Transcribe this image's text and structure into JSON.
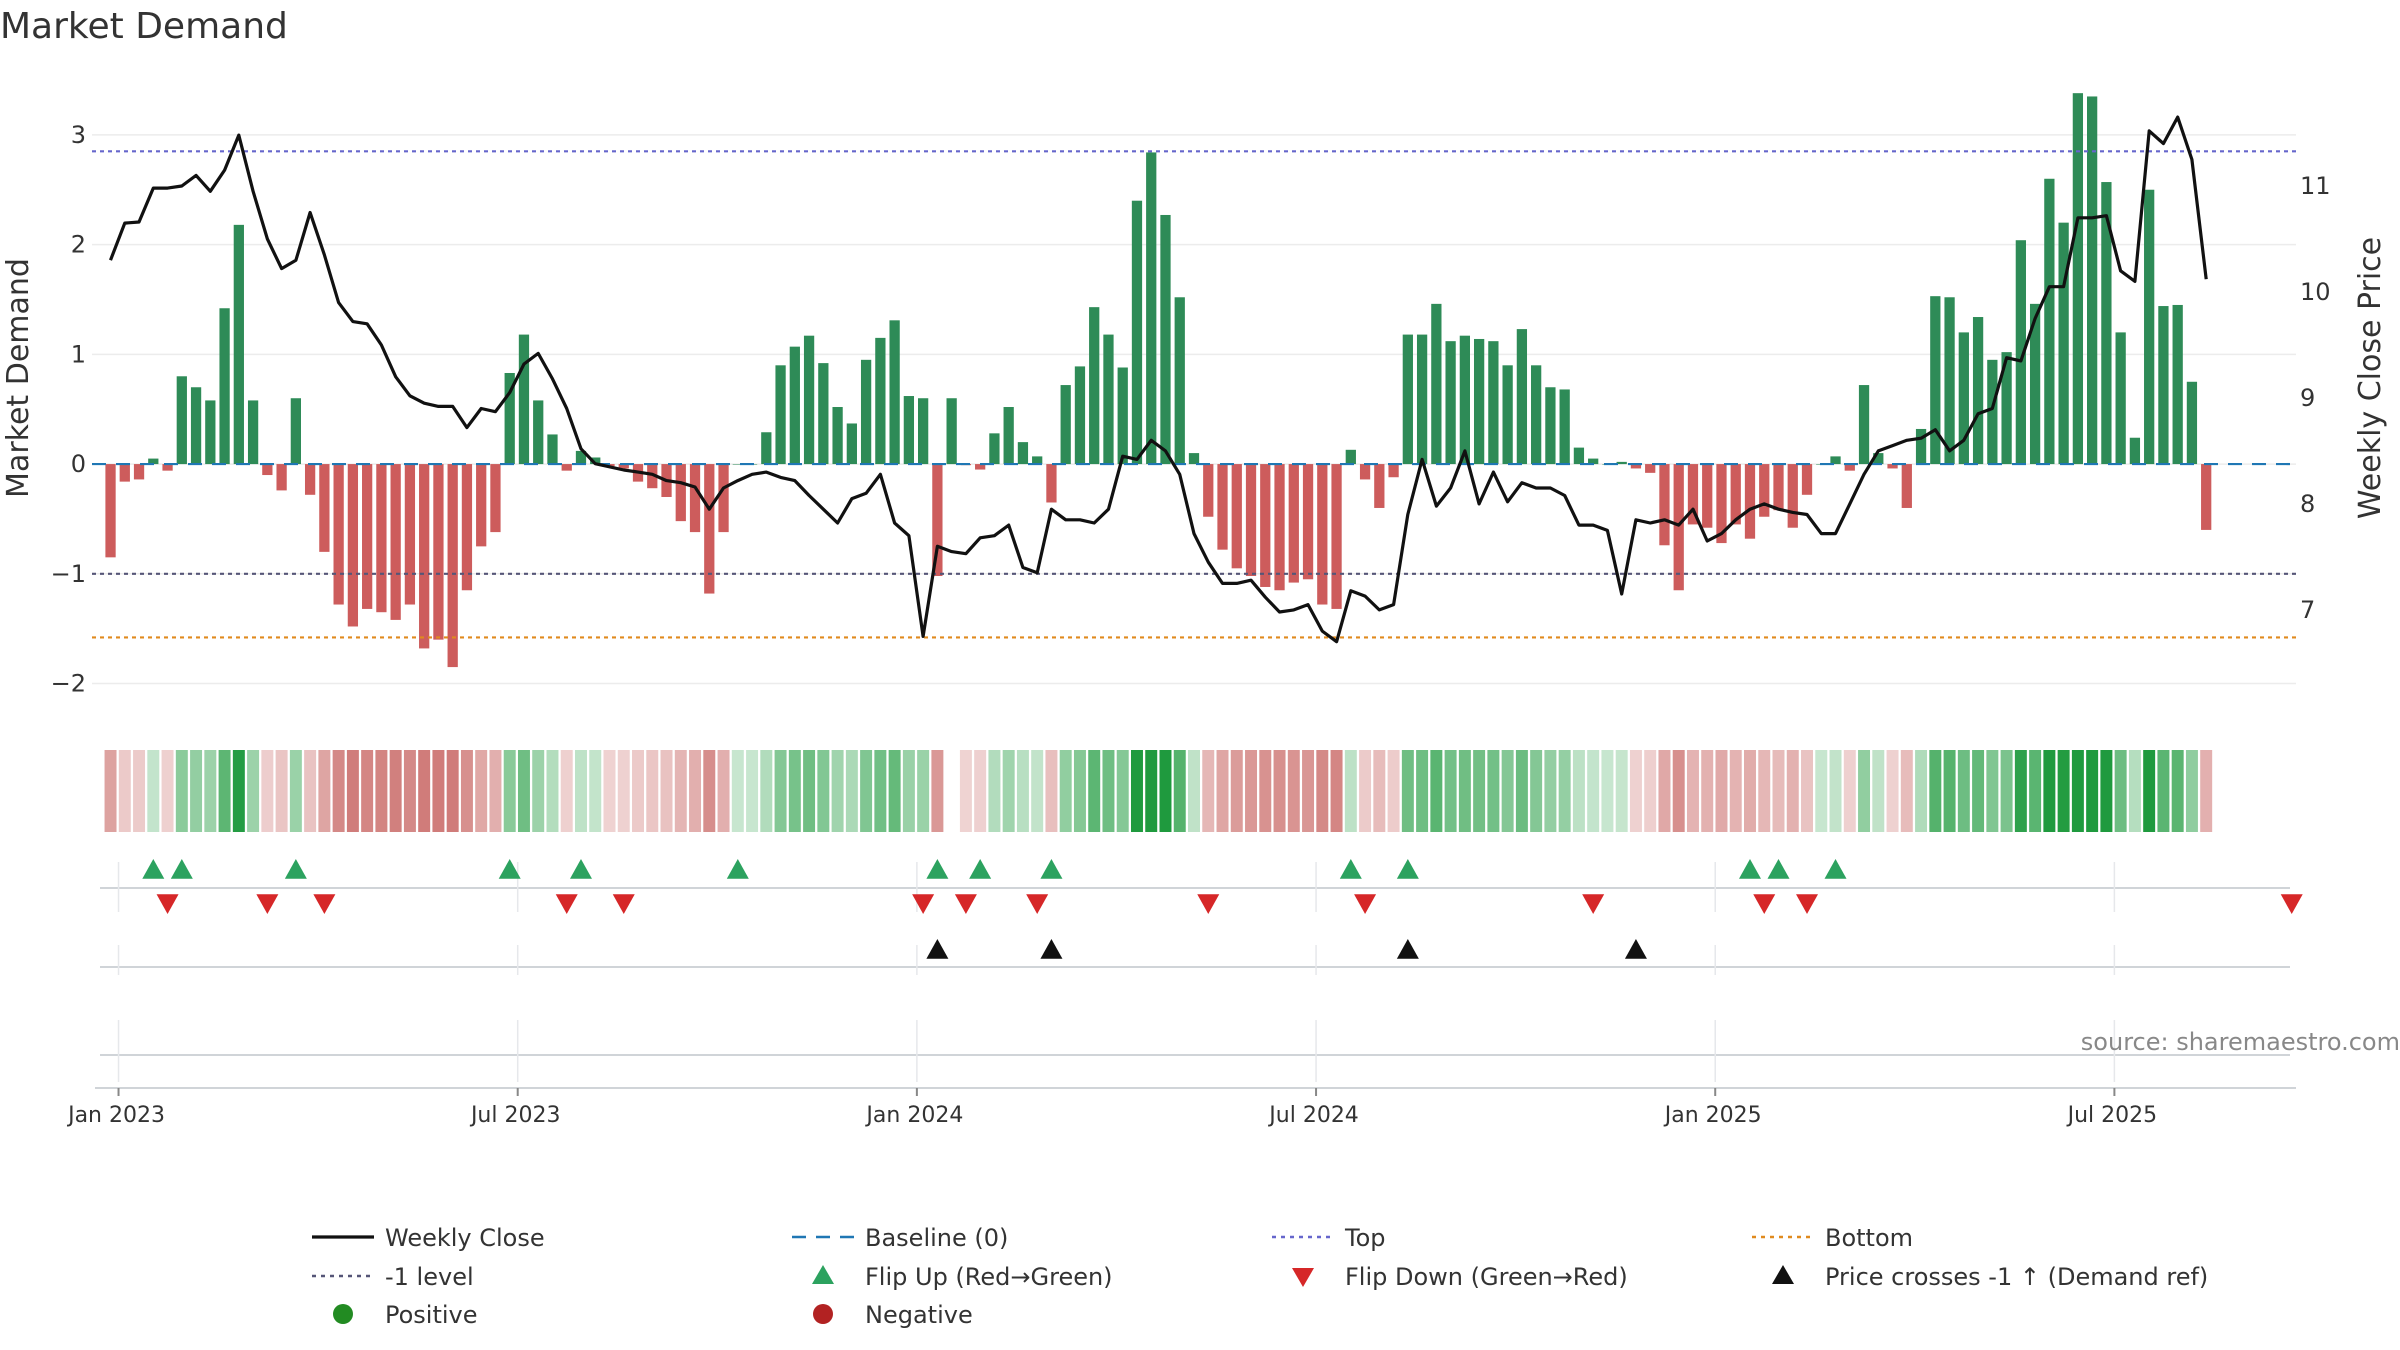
{
  "chart_data": {
    "type": "bar",
    "title": "Market Demand",
    "ylabel": "Market Demand",
    "ylabel_right": "Weekly Close Price",
    "ylim": [
      -2.15,
      3.5
    ],
    "ylim_right": [
      6.15,
      12.0
    ],
    "yticks": [
      -2,
      -1,
      0,
      1,
      2,
      3
    ],
    "ytick_labels": [
      "−2",
      "−1",
      "0",
      "1",
      "2",
      "3"
    ],
    "yticks_right": [
      7,
      8,
      9,
      10,
      11
    ],
    "ytick_labels_right": [
      "7",
      "8",
      "9",
      "10",
      "11"
    ],
    "x_range": [
      -1.3,
      153.3
    ],
    "xticks": [
      {
        "label": "Jan 2023",
        "index": 0
      },
      {
        "label": "Jul 2023",
        "index": 28
      },
      {
        "label": "Jan 2024",
        "index": 56
      },
      {
        "label": "Jul 2024",
        "index": 84
      },
      {
        "label": "Jan 2025",
        "index": 112
      },
      {
        "label": "Jul 2025",
        "index": 140
      }
    ],
    "reference_lines": {
      "top": 2.85,
      "bottom": -1.58,
      "minus_one": -1.0,
      "baseline": 0
    },
    "series": [
      {
        "name": "Market Demand",
        "kind": "bar",
        "values": [
          -0.85,
          -0.16,
          -0.14,
          0.05,
          -0.06,
          0.8,
          0.7,
          0.58,
          1.42,
          2.18,
          0.58,
          -0.1,
          -0.24,
          0.6,
          -0.28,
          -0.8,
          -1.28,
          -1.48,
          -1.32,
          -1.35,
          -1.42,
          -1.28,
          -1.68,
          -1.6,
          -1.85,
          -1.15,
          -0.75,
          -0.62,
          0.83,
          1.18,
          0.58,
          0.27,
          -0.06,
          0.12,
          0.06,
          -0.02,
          -0.04,
          -0.16,
          -0.22,
          -0.3,
          -0.52,
          -0.62,
          -1.18,
          -0.62,
          0.0,
          0.0,
          0.29,
          0.9,
          1.07,
          1.17,
          0.92,
          0.52,
          0.37,
          0.95,
          1.15,
          1.31,
          0.62,
          0.6,
          -1.02,
          0.6,
          -0.01,
          -0.05,
          0.28,
          0.52,
          0.2,
          0.07,
          -0.35,
          0.72,
          0.89,
          1.43,
          1.18,
          0.88,
          2.4,
          2.84,
          2.27,
          1.52,
          0.1,
          -0.48,
          -0.78,
          -0.95,
          -1.02,
          -1.12,
          -1.15,
          -1.08,
          -1.05,
          -1.28,
          -1.32,
          0.13,
          -0.14,
          -0.4,
          -0.12,
          1.18,
          1.18,
          1.46,
          1.12,
          1.17,
          1.14,
          1.12,
          0.9,
          1.23,
          0.9,
          0.7,
          0.68,
          0.15,
          0.05,
          0.0,
          0.02,
          -0.04,
          -0.08,
          -0.74,
          -1.15,
          -0.55,
          -0.58,
          -0.72,
          -0.55,
          -0.68,
          -0.48,
          -0.42,
          -0.58,
          -0.28,
          0.0,
          0.07,
          -0.06,
          0.72,
          0.1,
          -0.04,
          -0.4,
          0.32,
          1.53,
          1.52,
          1.2,
          1.34,
          0.95,
          1.02,
          2.04,
          1.46,
          2.6,
          2.2,
          3.38,
          3.35,
          2.57,
          1.2,
          0.24,
          2.5,
          1.44,
          1.45,
          0.75,
          -0.6
        ]
      },
      {
        "name": "Weekly Close",
        "kind": "line",
        "axis": "right",
        "values": [
          10.3,
          10.65,
          10.66,
          10.98,
          10.98,
          11.0,
          11.1,
          10.95,
          11.15,
          11.48,
          10.95,
          10.5,
          10.22,
          10.3,
          10.75,
          10.35,
          9.9,
          9.72,
          9.7,
          9.5,
          9.2,
          9.02,
          8.95,
          8.92,
          8.92,
          8.72,
          8.9,
          8.87,
          9.05,
          9.32,
          9.42,
          9.18,
          8.9,
          8.52,
          8.38,
          8.35,
          8.32,
          8.3,
          8.28,
          8.22,
          8.2,
          8.16,
          7.95,
          8.15,
          8.22,
          8.28,
          8.3,
          8.25,
          8.22,
          8.08,
          7.95,
          7.82,
          8.05,
          8.1,
          8.28,
          7.82,
          7.7,
          6.75,
          7.6,
          7.55,
          7.53,
          7.68,
          7.7,
          7.8,
          7.4,
          7.35,
          7.95,
          7.85,
          7.85,
          7.82,
          7.95,
          8.45,
          8.42,
          8.6,
          8.5,
          8.28,
          7.72,
          7.45,
          7.25,
          7.25,
          7.28,
          7.12,
          6.98,
          7.0,
          7.05,
          6.8,
          6.7,
          7.18,
          7.13,
          7.0,
          7.05,
          7.9,
          8.42,
          7.98,
          8.15,
          8.5,
          8.0,
          8.3,
          8.02,
          8.2,
          8.15,
          8.15,
          8.08,
          7.8,
          7.8,
          7.75,
          7.15,
          7.85,
          7.82,
          7.85,
          7.8,
          7.95,
          7.65,
          7.72,
          7.85,
          7.95,
          8.0,
          7.95,
          7.92,
          7.9,
          7.72,
          7.72,
          8.0,
          8.28,
          8.5,
          8.55,
          8.6,
          8.62,
          8.7,
          8.5,
          8.6,
          8.85,
          8.9,
          9.38,
          9.35,
          9.75,
          10.05,
          10.05,
          10.7,
          10.7,
          10.72,
          10.2,
          10.1,
          11.52,
          11.4,
          11.65,
          11.25,
          10.12
        ]
      },
      {
        "name": "Flip Up (Red→Green)",
        "kind": "marker",
        "indices": [
          3,
          5,
          13,
          28,
          33,
          44,
          58,
          61,
          66,
          87,
          91,
          115,
          117,
          121
        ]
      },
      {
        "name": "Flip Down (Green→Red)",
        "kind": "marker",
        "indices": [
          4,
          11,
          15,
          32,
          36,
          57,
          60,
          65,
          77,
          88,
          104,
          116,
          119,
          153
        ]
      },
      {
        "name": "Price crosses -1 ↑ (Demand ref)",
        "kind": "marker",
        "indices": [
          58,
          66,
          91,
          107
        ]
      }
    ],
    "heat_strip_gaps": [
      59
    ],
    "legend": [
      {
        "label": "Weekly Close",
        "style": "solid",
        "color": "#111111"
      },
      {
        "label": "Baseline (0)",
        "style": "dashed",
        "color": "#1f77b4"
      },
      {
        "label": "Top",
        "style": "dotted",
        "color": "#6666cc"
      },
      {
        "label": "Bottom",
        "style": "dotted",
        "color": "#e08a1e"
      },
      {
        "label": "-1 level",
        "style": "dotted",
        "color": "#555577"
      },
      {
        "label": "Flip Up (Red→Green)",
        "style": "triangle-up",
        "color": "#2ca25f"
      },
      {
        "label": "Flip Down (Green→Red)",
        "style": "triangle-down",
        "color": "#d62728"
      },
      {
        "label": "Price crosses -1 ↑ (Demand ref)",
        "style": "triangle-up",
        "color": "#111111"
      },
      {
        "label": "Positive",
        "style": "circle",
        "color": "#228b22"
      },
      {
        "label": "Negative",
        "style": "circle",
        "color": "#b22222"
      }
    ],
    "legend_placement": "bottom",
    "source_note": "source: sharemaestro.com"
  },
  "colors": {
    "positive_bar": "#2e8b57",
    "negative_bar": "#cd5c5c",
    "line": "#111111",
    "top": "#6666cc",
    "bottom": "#e08a1e",
    "minus_one": "#555577",
    "baseline": "#1f77b4",
    "flip_up": "#2ca25f",
    "flip_down": "#d62728",
    "cross": "#111111",
    "grid": "#ececec",
    "axis": "#d0d4d8"
  }
}
